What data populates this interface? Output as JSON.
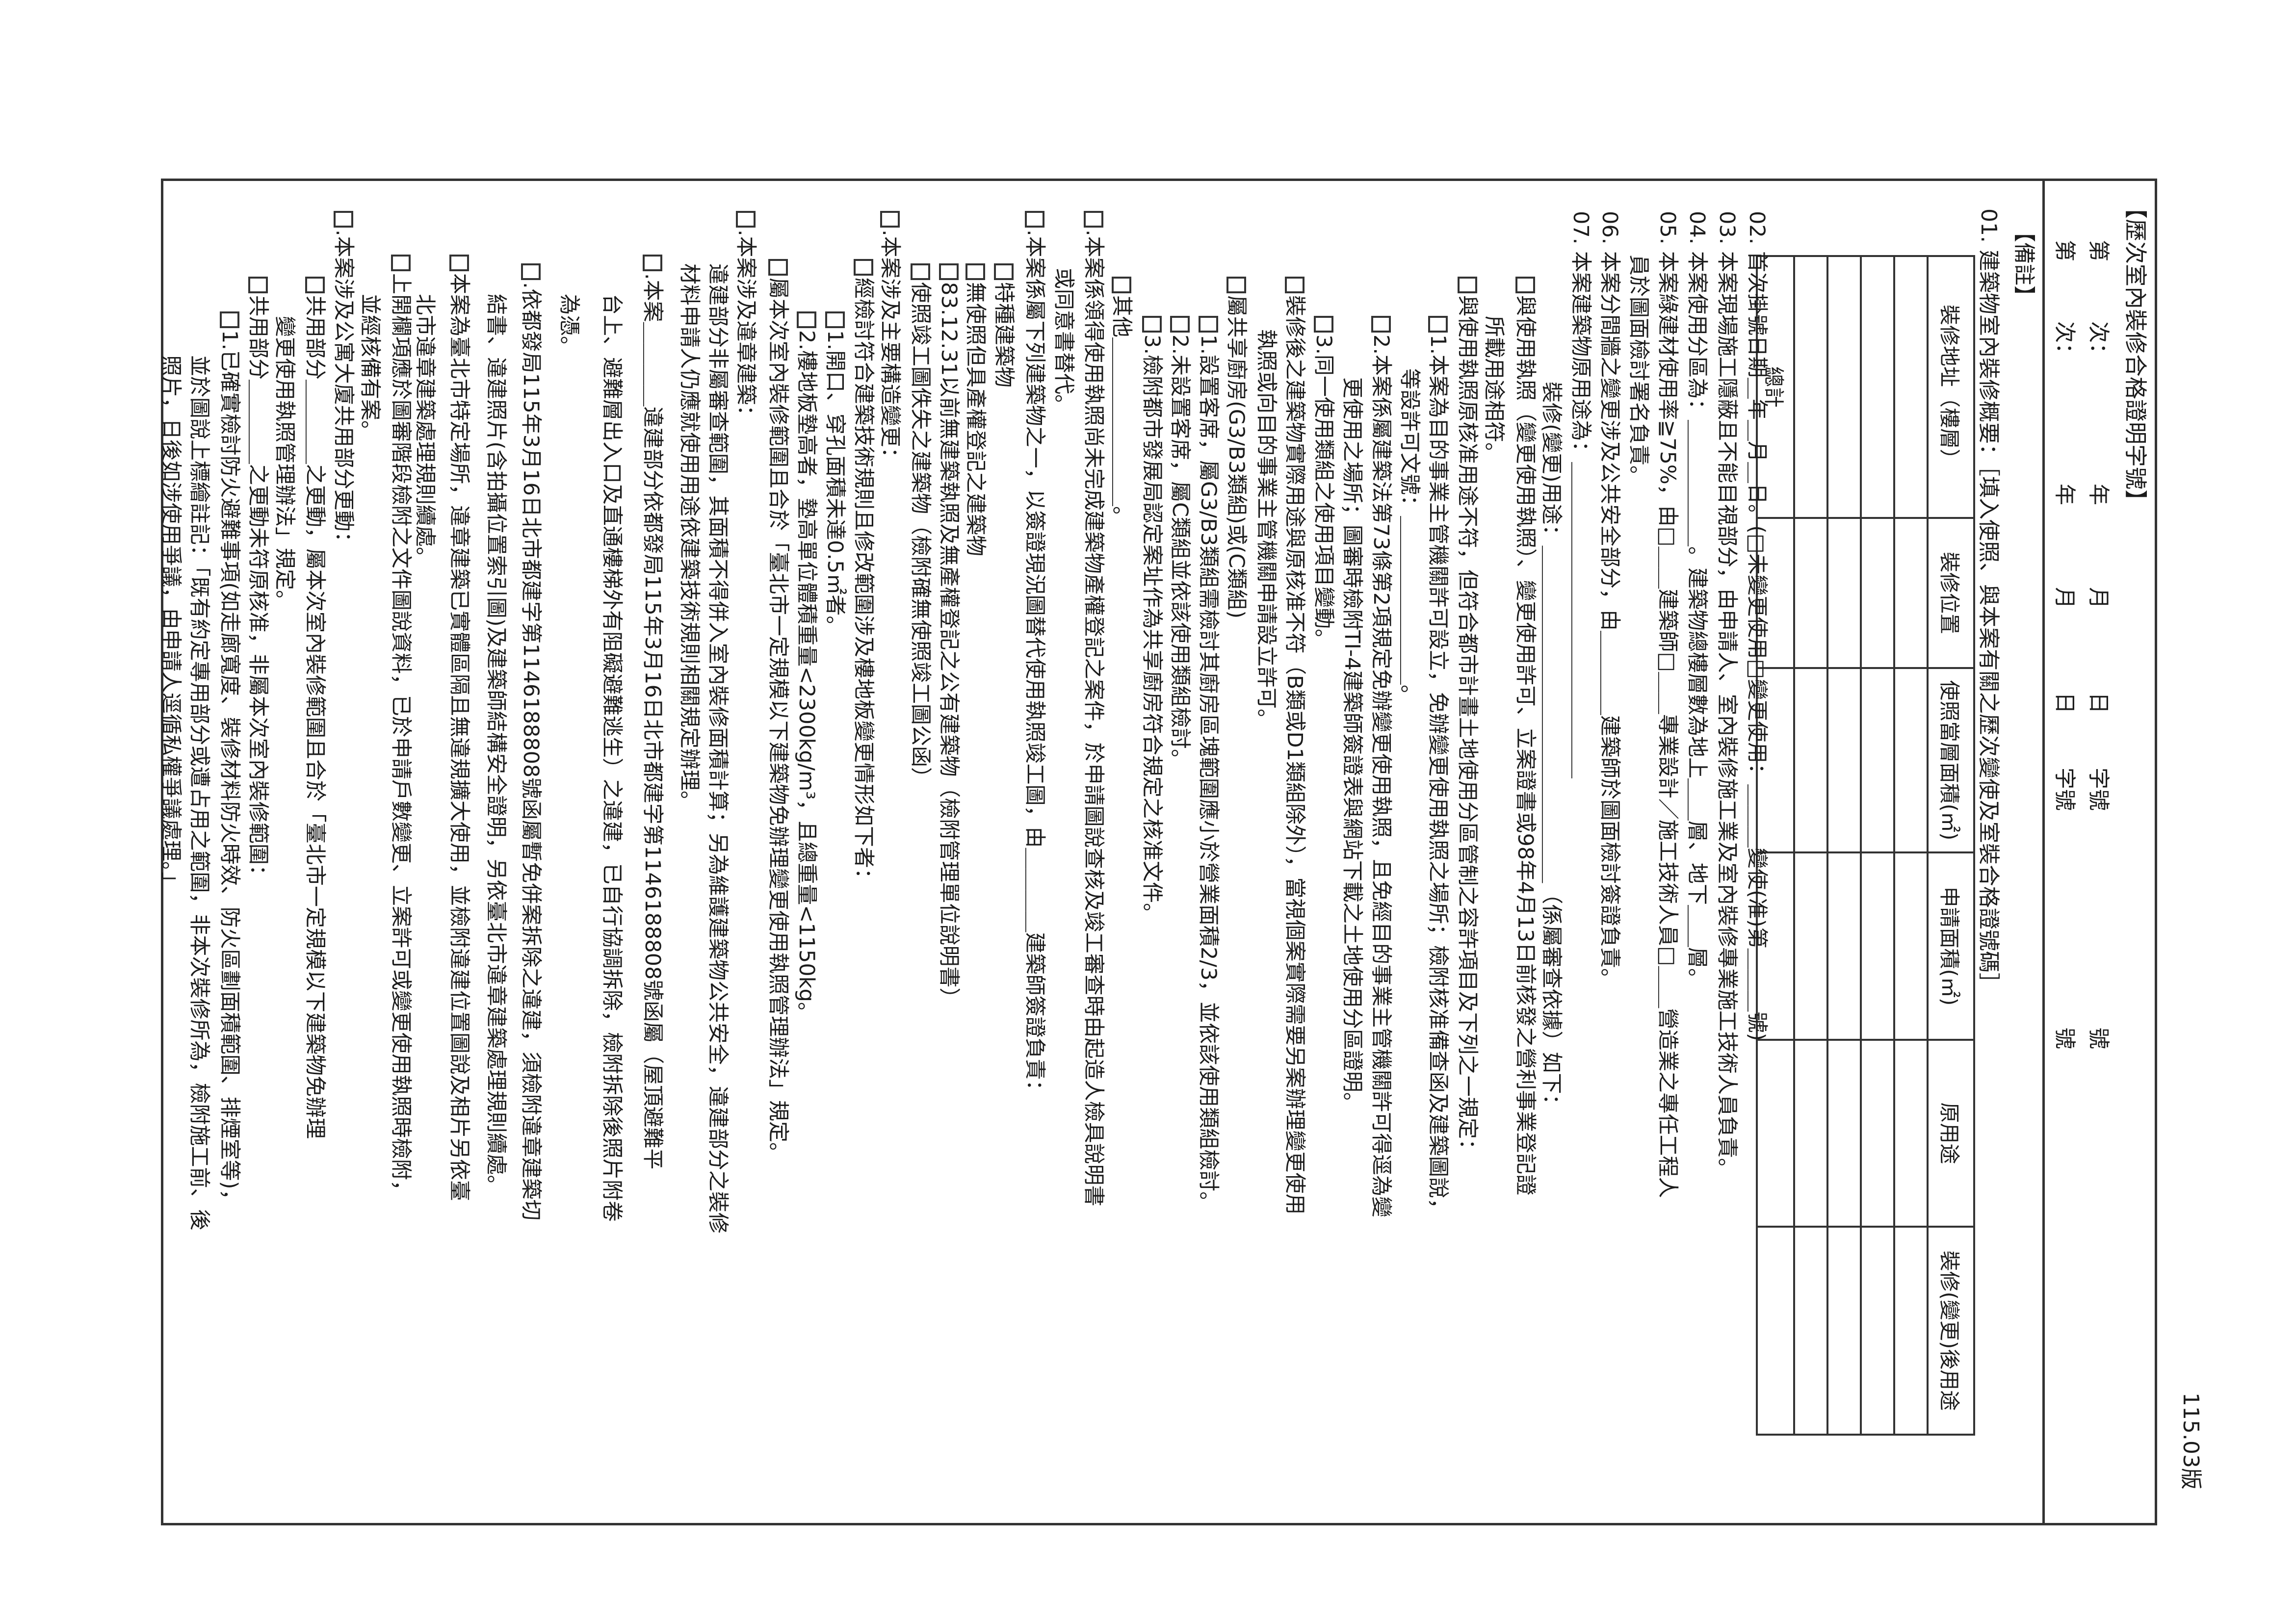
{
  "header": {
    "title": "【歷次室內裝修合格證明字號】",
    "rows": [
      {
        "di": "第",
        "ci": "次：",
        "year": "年",
        "month": "月",
        "day": "日",
        "zi": "字號",
        "hao": "號"
      },
      {
        "di": "第",
        "ci": "次：",
        "year": "年",
        "month": "月",
        "day": "日",
        "zi": "字號",
        "hao": "號"
      }
    ]
  },
  "remarks_label": "【備註】",
  "item01": "01. 建築物室內裝修概要：［填入使照、與本案有關之歷次變使及室裝合格證號碼］",
  "table": {
    "columns": [
      "裝修地址（樓層）",
      "裝修位置",
      "使照當層面積(㎡)",
      "申請面積(㎡)",
      "原用途",
      "裝修(變更)後用途"
    ],
    "blank_rows": 4,
    "total_label": "總計"
  },
  "lines": [
    {
      "cb": false,
      "text": "02. 首次掛號日期＿年＿月＿日。(□未變更使用□變更使用：＿＿＿變使(准)第＿＿＿號)"
    },
    {
      "cb": false,
      "text": "03. 本案現場施工隱蔽且不能目視部分，由申請人、室內裝修施工業及室內裝修專業施工技術人員負責。"
    },
    {
      "cb": false,
      "text": "04. 本案使用分區為：＿＿＿＿＿＿。建築物總樓層數為地上＿＿層、地下＿＿層。"
    },
    {
      "cb": false,
      "text": "05. 本案綠建材使用率≧75%，由□＿＿建築師□＿＿專業設計／施工技術人員□＿＿營造業之專任工程人"
    },
    {
      "cb": false,
      "text": "員於圖面檢討署名負責。"
    },
    {
      "cb": false,
      "text": "06. 本案分間牆之變更涉及公共安全部分，由＿＿＿＿建築師於圖面檢討簽證負責。"
    },
    {
      "cb": false,
      "text": "07. 本案建築物原用途為：＿＿＿＿＿＿＿＿＿＿＿＿＿＿＿"
    },
    {
      "cb": false,
      "text": "裝修(變更)用途：＿＿＿＿＿＿＿＿＿＿＿＿＿＿＿＿（係屬審查依據）如下："
    },
    {
      "cb": true,
      "text": "與使用執照（變更使用執照）、變更使用許可、立案證書或98年4月13日前核發之營利事業登記證"
    },
    {
      "cb": false,
      "text": "所載用途相符。"
    },
    {
      "cb": true,
      "text": "與使用執照原核准用途不符，但符合都市計畫土地使用分區管制之容許項目及下列之一規定："
    },
    {
      "cb": true,
      "text": "1.本案為目的事業主管機關許可設立，免辦變更使用執照之場所；檢附核准備查函及建築圖說，"
    },
    {
      "cb": false,
      "text": "等設許可文號：＿＿＿＿＿＿＿＿。"
    },
    {
      "cb": true,
      "text": "2.本案係屬建築法第73條第2項規定免辦變更使用執照，且免經目的事業主管機關許可得逕為變"
    },
    {
      "cb": false,
      "text": "更使用之場所；圖審時檢附TI-4建築師簽證表與網站下載之土地使用分區證明。"
    },
    {
      "cb": true,
      "text": "3.同一使用類組之使用項目變動。"
    },
    {
      "cb": true,
      "text": "裝修後之建築物實際用途與原核准不符（B類或D1類組除外），當視個案實際需要另案辦理變更使用"
    },
    {
      "cb": false,
      "text": "執照或向目的事業主管機關申請設立許可。"
    },
    {
      "cb": true,
      "text": "屬共享廚房(G3/B3類組)或(C類組)"
    },
    {
      "cb": true,
      "text": "1.設置客席，屬G3/B3類組需檢討其廚房區塊範圍應小於營業面積2/3，並依該使用類組檢討。"
    },
    {
      "cb": true,
      "text": "2.未設置客席，屬C類組並依該使用類組檢討。"
    },
    {
      "cb": true,
      "text": "3.檢附都市發展局認定案址作為共享廚房符合規定之核准文件。"
    },
    {
      "cb": true,
      "text": "其他＿＿＿＿＿＿＿＿。"
    },
    {
      "cb": true,
      "text": ".本案係領得使用執照尚未完成建築物產權登記之案件，於申請圖說查核及竣工審查時由起造人檢具說明書"
    },
    {
      "cb": false,
      "text": "或同意書替代。"
    },
    {
      "cb": true,
      "text": ".本案係屬下列建築物之一，以簽證現況圖替代使用執照竣工圖，由＿＿＿＿建築師簽證負責："
    },
    {
      "cb": true,
      "text": "特種建築物"
    },
    {
      "cb": true,
      "text": "無使照但具產權登記之建築物"
    },
    {
      "cb": true,
      "text": "83.12.31以前無建築執照及無產權登記之公有建築物（檢附管理單位說明書）"
    },
    {
      "cb": true,
      "text": "使照竣工圖佚失之建築物（檢附確無使照竣工圖公函）"
    },
    {
      "cb": true,
      "text": ".本案涉及主要構造變更："
    },
    {
      "cb": true,
      "text": "經檢討符合建築技術規則且修改範圍涉及樓地板變更情形如下者："
    },
    {
      "cb": true,
      "text": "1.開口、穿孔面積未達0.5㎡者。"
    },
    {
      "cb": true,
      "text": "2.樓地板墊高者，墊高單位體積重量<2300kg/m³，且總重量<1150kg。"
    },
    {
      "cb": true,
      "text": "屬本次室內裝修範圍且合於「臺北市一定規模以下建築物免辦理變更使用執照管理辦法」規定。"
    },
    {
      "cb": true,
      "text": ".本案涉及違章建築："
    },
    {
      "cb": false,
      "text": "違建部分非屬審查範圍，其面積不得併入室內裝修面積計算；另為維護建築物公共安全，違建部分之裝修"
    },
    {
      "cb": false,
      "text": "材料申請人仍應就使用用途依建築技術規則相關規定辦理。"
    },
    {
      "cb": true,
      "text": ".本案＿＿＿＿違建部分依都發局115年3月16日北市都建字第1146188808號函屬（屋頂避難平"
    },
    {
      "cb": false,
      "text": "台上、避難層出入口及直通樓梯外有阻礙避難逃生）之違建，已自行協調拆除，檢附拆除後照片附卷"
    },
    {
      "cb": false,
      "text": "為憑。"
    },
    {
      "cb": true,
      "text": ".依都發局115年3月16日北市都建字第1146188808號函屬暫免併案拆除之違建，須檢附違章建築切"
    },
    {
      "cb": false,
      "text": "結書、違建照片(含拍攝位置索引圖)及建築師結構安全證明，另依臺北市違章建築處理規則續處。"
    },
    {
      "cb": true,
      "text": "本案為臺北市特定場所，違章建築已實體區隔且無違規擴大使用，並檢附違建位置圖說及相片另依臺"
    },
    {
      "cb": false,
      "text": "北市違章建築處理規則續處。"
    },
    {
      "cb": true,
      "text": "上開欄項應於圖審階段檢附之文件圖說資料，已於申請戶數變更、立案許可或變更使用執照時檢附，"
    },
    {
      "cb": false,
      "text": "並經核備有案。"
    },
    {
      "cb": true,
      "text": ".本案涉及公寓大廈共用部分更動："
    },
    {
      "cb": true,
      "text": "共用部分＿＿＿＿之更動，屬本次室內裝修範圍且合於「臺北市一定規模以下建築物免辦理"
    },
    {
      "cb": false,
      "text": "變更使用執照管理辦法」規定。"
    },
    {
      "cb": true,
      "text": "共用部分＿＿＿＿之更動未符原核准，非屬本次室內裝修範圍："
    },
    {
      "cb": true,
      "text": "1.已確實檢討防火避難事項(如走廊寬度、裝修材料防火時效、防火區劃面積範圍、排煙室等)，"
    },
    {
      "cb": false,
      "text": "並於圖說上標繪註記：「既有約定專用部分或遭占用之範圍，非本次裝修所為，檢附施工前、後"
    },
    {
      "cb": false,
      "text": "照片，日後如涉使用爭議，由申請人逕循私權爭議處理。」"
    }
  ],
  "version": "115.03版"
}
